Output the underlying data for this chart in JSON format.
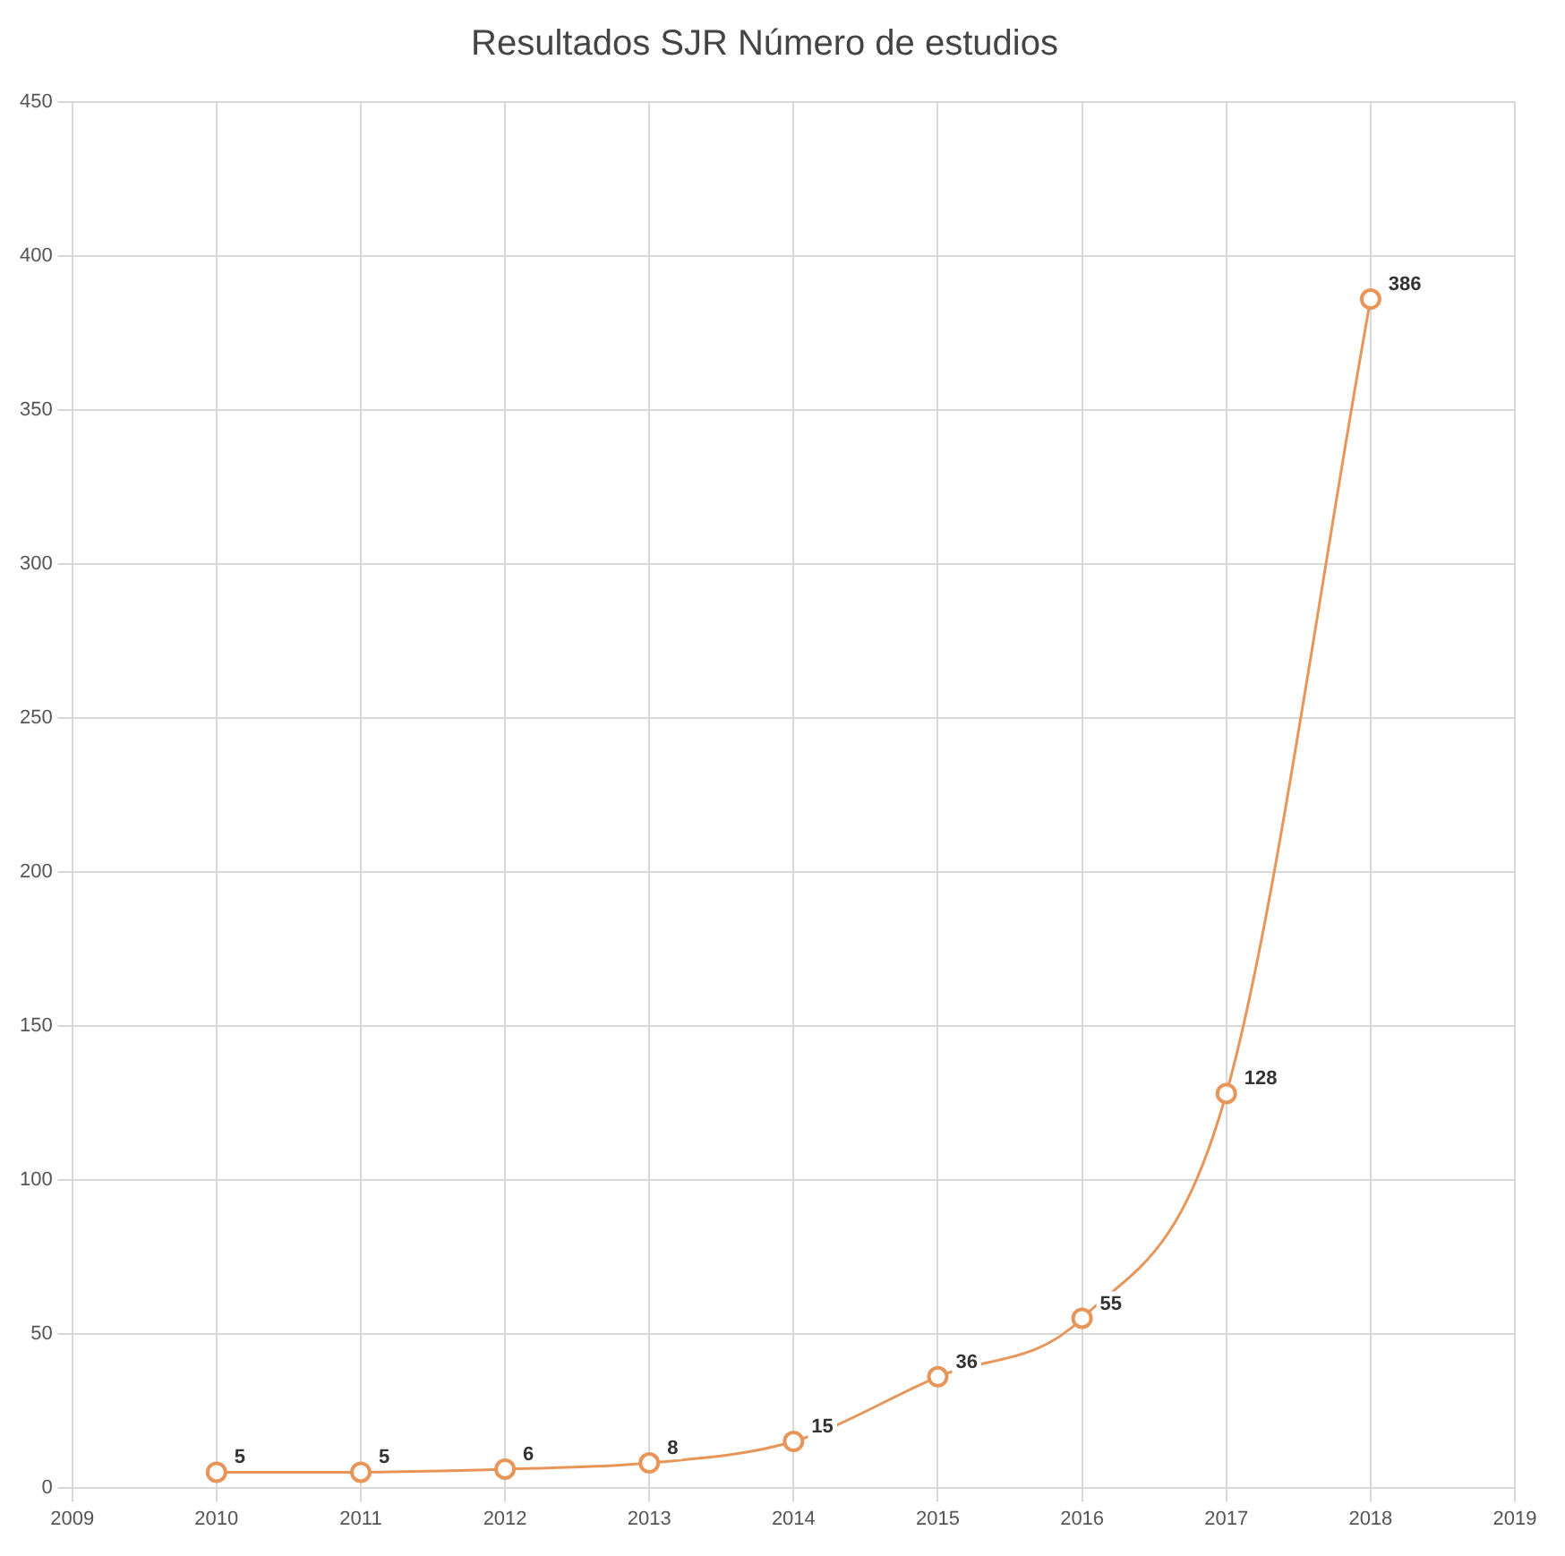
{
  "chart_data": {
    "type": "line",
    "title": "Resultados SJR Número de estudios",
    "x": [
      2010,
      2011,
      2012,
      2013,
      2014,
      2015,
      2016,
      2017,
      2018
    ],
    "series": [
      {
        "color": "#e8955a",
        "values": [
          5,
          5,
          6,
          8,
          15,
          36,
          55,
          128,
          386
        ]
      }
    ],
    "xlim": [
      2009,
      2019
    ],
    "xticks": [
      2009,
      2010,
      2011,
      2012,
      2013,
      2014,
      2015,
      2016,
      2017,
      2018,
      2019
    ],
    "ylim": [
      0,
      450
    ],
    "yticks": [
      0,
      50,
      100,
      150,
      200,
      250,
      300,
      350,
      400,
      450
    ],
    "grid": true,
    "legend": false,
    "marker": "circle",
    "line_style": "solid",
    "data_labels": true
  }
}
